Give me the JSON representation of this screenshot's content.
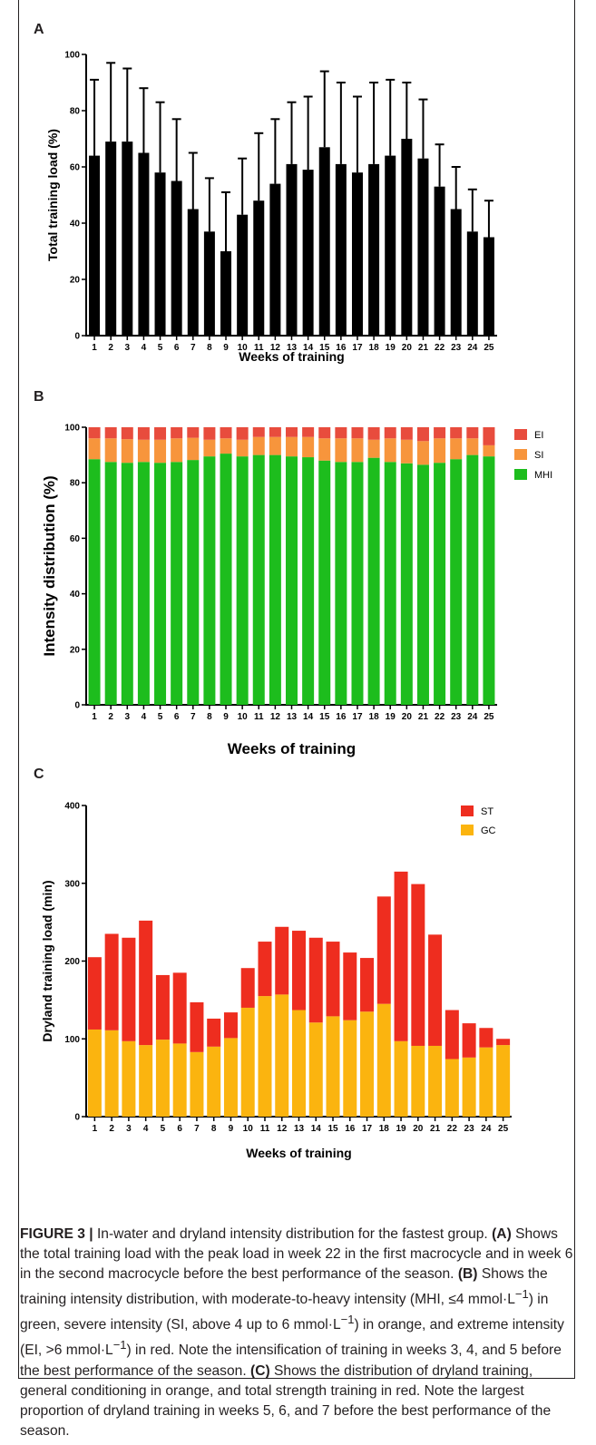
{
  "panels": [
    {
      "letter": "A",
      "chart_data": {
        "type": "bar",
        "ylabel": "Total training load (%)",
        "xlabel": "Weeks of training",
        "ylim": [
          0,
          100
        ],
        "yticks": [
          0,
          20,
          40,
          60,
          80,
          100
        ],
        "categories": [
          "1",
          "2",
          "3",
          "4",
          "5",
          "6",
          "7",
          "8",
          "9",
          "10",
          "11",
          "12",
          "13",
          "14",
          "15",
          "16",
          "17",
          "18",
          "19",
          "20",
          "21",
          "22",
          "23",
          "24",
          "25"
        ],
        "series": [
          {
            "values": [
              64,
              69,
              69,
              65,
              58,
              55,
              45,
              37,
              30,
              43,
              48,
              54,
              61,
              59,
              67,
              61,
              58,
              61,
              64,
              70,
              63,
              53,
              45,
              37,
              35
            ],
            "error_upper": [
              91,
              97,
              95,
              88,
              83,
              77,
              65,
              56,
              51,
              63,
              72,
              77,
              83,
              85,
              94,
              90,
              85,
              90,
              91,
              90,
              84,
              68,
              60,
              52,
              48
            ],
            "color": "#000000"
          }
        ]
      }
    },
    {
      "letter": "B",
      "chart_data": {
        "type": "bar",
        "stacked": true,
        "ylabel": "Intensity distribution (%)",
        "xlabel": "Weeks of training",
        "ylim": [
          0,
          100
        ],
        "yticks": [
          0,
          20,
          40,
          60,
          80,
          100
        ],
        "categories": [
          "1",
          "2",
          "3",
          "4",
          "5",
          "6",
          "7",
          "8",
          "9",
          "10",
          "11",
          "12",
          "13",
          "14",
          "15",
          "16",
          "17",
          "18",
          "19",
          "20",
          "21",
          "22",
          "23",
          "24",
          "25"
        ],
        "legend_position": "right",
        "series": [
          {
            "name": "MHI",
            "color": "#1dbd1d",
            "values": [
              88.5,
              87.5,
              87.2,
              87.5,
              87.2,
              87.5,
              88.2,
              89.5,
              90.5,
              89.5,
              90,
              90,
              89.5,
              89.2,
              88,
              87.5,
              87.5,
              89,
              87.5,
              87,
              86.5,
              87.2,
              88.5,
              90,
              89.5
            ]
          },
          {
            "name": "SI",
            "color": "#f7953c",
            "values": [
              7.5,
              8.5,
              8.5,
              8,
              8.3,
              8.5,
              8,
              6,
              5.5,
              6,
              6.5,
              6.5,
              7,
              7.3,
              8,
              8.5,
              8.5,
              6.5,
              8.5,
              8.5,
              8.5,
              8.8,
              7.5,
              6,
              4
            ]
          },
          {
            "name": "EI",
            "color": "#e84c3d",
            "values": [
              4,
              4,
              4.3,
              4.5,
              4.5,
              4,
              3.8,
              4.5,
              4,
              4.5,
              3.5,
              3.5,
              3.5,
              3.5,
              4,
              4,
              4,
              4.5,
              4,
              4.5,
              5,
              4,
              4,
              4,
              6.5
            ]
          }
        ]
      }
    },
    {
      "letter": "C",
      "chart_data": {
        "type": "bar",
        "stacked": true,
        "ylabel": "Dryland training load (min)",
        "xlabel": "Weeks of training",
        "ylim": [
          0,
          400
        ],
        "yticks": [
          0,
          100,
          200,
          300,
          400
        ],
        "categories": [
          "1",
          "2",
          "3",
          "4",
          "5",
          "6",
          "7",
          "8",
          "9",
          "10",
          "11",
          "12",
          "13",
          "14",
          "15",
          "16",
          "17",
          "18",
          "19",
          "20",
          "21",
          "22",
          "23",
          "24",
          "25"
        ],
        "legend_position": "top-right",
        "legend_order": [
          "ST",
          "GC"
        ],
        "series": [
          {
            "name": "GC",
            "color": "#fbb40f",
            "values": [
              112,
              111,
              97,
              92,
              99,
              94,
              83,
              90,
              101,
              140,
              155,
              157,
              137,
              121,
              129,
              124,
              135,
              145,
              97,
              91,
              91,
              74,
              76,
              89,
              92
            ]
          },
          {
            "name": "ST",
            "color": "#ee2d1f",
            "values": [
              93,
              124,
              133,
              160,
              83,
              91,
              64,
              36,
              33,
              51,
              70,
              87,
              102,
              109,
              96,
              87,
              69,
              138,
              218,
              208,
              143,
              63,
              44,
              25,
              8
            ]
          }
        ]
      }
    }
  ],
  "caption": {
    "figure_label": "FIGURE 3 |",
    "intro": "In-water and dryland intensity distribution for the fastest group.",
    "a_label": "(A)",
    "a_text": "Shows the total training load with the peak load in week 22 in the first macrocycle and in week 6 in the second macrocycle before the best performance of the season.",
    "b_label": "(B)",
    "b_text_1": "Shows the training intensity distribution, with moderate-to-heavy intensity (MHI, ≤4 mmol·L",
    "b_sup_1": "−1",
    "b_text_2": ") in green, severe intensity (SI, above 4 up to 6 mmol·L",
    "b_sup_2": "−1",
    "b_text_3": ") in orange, and extreme intensity (EI, >6 mmol·L",
    "b_sup_3": "−1",
    "b_text_4": ") in red. Note the intensification of training in weeks 3, 4, and 5 before the best performance of the season.",
    "c_label": "(C)",
    "c_text": "Shows the distribution of dryland training, general conditioning in orange, and total strength training in red. Note the largest proportion of dryland training in weeks 5, 6, and 7 before the best performance of the season."
  }
}
